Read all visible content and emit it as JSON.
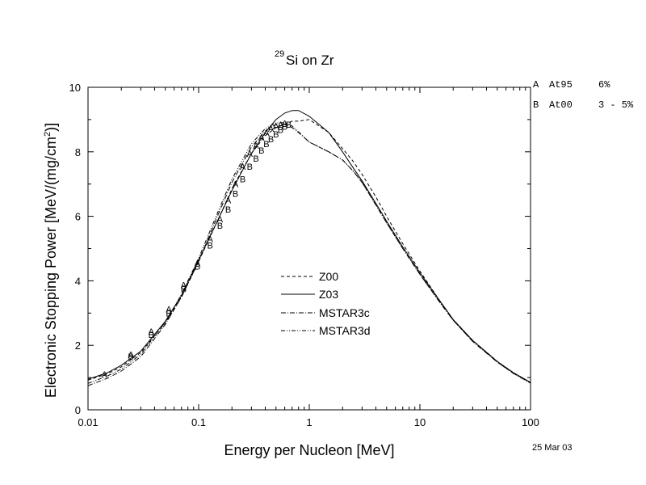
{
  "chart_data": {
    "type": "line",
    "title": "Si on Zr",
    "title_superscript": "29",
    "xlabel": "Energy per Nucleon [MeV]",
    "ylabel": "Electronic Stopping Power [MeV/(mg/cm",
    "ylabel_superscript": "2",
    "ylabel_suffix": ")]",
    "xscale": "log",
    "xlim": [
      0.01,
      100
    ],
    "ylim": [
      0,
      10
    ],
    "x_ticks": [
      0.01,
      0.1,
      1,
      10,
      100
    ],
    "x_tick_labels": [
      "0.01",
      "0.1",
      "1",
      "10",
      "100"
    ],
    "y_ticks": [
      0,
      2,
      4,
      6,
      8,
      10
    ],
    "y_tick_labels": [
      "0",
      "2",
      "4",
      "6",
      "8",
      "10"
    ],
    "legend_position": "center",
    "series": [
      {
        "name": "Z00",
        "style": "dashed",
        "x": [
          0.01,
          0.015,
          0.02,
          0.03,
          0.05,
          0.07,
          0.1,
          0.15,
          0.2,
          0.3,
          0.4,
          0.5,
          0.6,
          0.7,
          0.8,
          1.0,
          1.5,
          2.0,
          2.5,
          3,
          4,
          5,
          7,
          10,
          15,
          20,
          30,
          50,
          70,
          100
        ],
        "y": [
          0.92,
          1.12,
          1.33,
          1.78,
          2.7,
          3.5,
          4.6,
          5.9,
          6.85,
          7.95,
          8.5,
          8.75,
          8.85,
          8.95,
          8.95,
          9.0,
          8.6,
          8.1,
          7.7,
          7.3,
          6.6,
          6.0,
          5.15,
          4.3,
          3.4,
          2.8,
          2.15,
          1.5,
          1.15,
          0.85
        ]
      },
      {
        "name": "Z03",
        "style": "solid",
        "x": [
          0.01,
          0.015,
          0.02,
          0.03,
          0.05,
          0.07,
          0.1,
          0.15,
          0.2,
          0.3,
          0.4,
          0.5,
          0.6,
          0.7,
          0.8,
          1.0,
          1.5,
          2.0,
          2.5,
          3,
          4,
          5,
          7,
          10,
          15,
          20,
          30,
          50,
          70,
          100
        ],
        "y": [
          0.95,
          1.15,
          1.38,
          1.82,
          2.75,
          3.55,
          4.65,
          5.9,
          6.8,
          7.95,
          8.6,
          9.0,
          9.2,
          9.28,
          9.28,
          9.1,
          8.6,
          8.0,
          7.5,
          7.1,
          6.4,
          5.85,
          5.05,
          4.25,
          3.4,
          2.8,
          2.15,
          1.5,
          1.15,
          0.85
        ]
      },
      {
        "name": "MSTAR3c",
        "style": "dashdot",
        "x": [
          0.01,
          0.015,
          0.02,
          0.03,
          0.05,
          0.07,
          0.1,
          0.15,
          0.2,
          0.3,
          0.4,
          0.5,
          0.6,
          0.7,
          0.8,
          1.0,
          1.5,
          2.0,
          2.5,
          3,
          4,
          5,
          7,
          10,
          15,
          20,
          30,
          50,
          70,
          100
        ],
        "y": [
          0.75,
          0.98,
          1.2,
          1.65,
          2.65,
          3.5,
          4.6,
          6.05,
          7.05,
          8.15,
          8.65,
          8.85,
          8.85,
          8.75,
          8.6,
          8.3,
          8.0,
          7.75,
          7.4,
          7.05,
          6.35,
          5.8,
          5.0,
          4.2,
          3.35,
          2.78,
          2.12,
          1.48,
          1.13,
          0.83
        ]
      },
      {
        "name": "MSTAR3d",
        "style": "dashdotdot",
        "x": [
          0.01,
          0.015,
          0.02,
          0.03,
          0.05,
          0.07,
          0.1,
          0.15,
          0.2,
          0.3,
          0.4,
          0.5,
          0.6,
          0.7,
          0.8,
          1.0,
          1.5,
          2.0,
          2.5,
          3,
          4,
          5,
          7,
          10,
          15,
          20,
          30,
          50,
          70,
          100
        ],
        "y": [
          0.82,
          1.05,
          1.26,
          1.72,
          2.72,
          3.58,
          4.7,
          6.15,
          7.15,
          8.25,
          8.72,
          8.9,
          8.9,
          8.8,
          8.62,
          8.3,
          8.0,
          7.75,
          7.4,
          7.05,
          6.35,
          5.8,
          5.0,
          4.2,
          3.35,
          2.78,
          2.12,
          1.48,
          1.13,
          0.83
        ]
      }
    ],
    "markers": [
      {
        "label": "A",
        "x": 0.0141,
        "y": 1.1
      },
      {
        "label": "A",
        "x": 0.0244,
        "y": 1.72
      },
      {
        "label": "A",
        "x": 0.0373,
        "y": 2.43
      },
      {
        "label": "A",
        "x": 0.0537,
        "y": 3.12
      },
      {
        "label": "A",
        "x": 0.0732,
        "y": 3.87
      },
      {
        "label": "A",
        "x": 0.0976,
        "y": 4.55
      },
      {
        "label": "A",
        "x": 0.127,
        "y": 5.3
      },
      {
        "label": "A",
        "x": 0.156,
        "y": 5.92
      },
      {
        "label": "A",
        "x": 0.185,
        "y": 6.5
      },
      {
        "label": "A",
        "x": 0.215,
        "y": 7.0
      },
      {
        "label": "A",
        "x": 0.25,
        "y": 7.55
      },
      {
        "label": "A",
        "x": 0.29,
        "y": 7.95
      },
      {
        "label": "A",
        "x": 0.33,
        "y": 8.2
      },
      {
        "label": "A",
        "x": 0.37,
        "y": 8.45
      },
      {
        "label": "A",
        "x": 0.41,
        "y": 8.6
      },
      {
        "label": "A",
        "x": 0.45,
        "y": 8.72
      },
      {
        "label": "A",
        "x": 0.5,
        "y": 8.8
      },
      {
        "label": "A",
        "x": 0.55,
        "y": 8.85
      },
      {
        "label": "A",
        "x": 0.6,
        "y": 8.88
      },
      {
        "label": "B",
        "x": 0.0244,
        "y": 1.65
      },
      {
        "label": "B",
        "x": 0.0373,
        "y": 2.33
      },
      {
        "label": "B",
        "x": 0.0537,
        "y": 3.0
      },
      {
        "label": "B",
        "x": 0.0732,
        "y": 3.75
      },
      {
        "label": "B",
        "x": 0.0976,
        "y": 4.45
      },
      {
        "label": "B",
        "x": 0.127,
        "y": 5.1
      },
      {
        "label": "B",
        "x": 0.156,
        "y": 5.72
      },
      {
        "label": "B",
        "x": 0.185,
        "y": 6.22
      },
      {
        "label": "B",
        "x": 0.215,
        "y": 6.7
      },
      {
        "label": "B",
        "x": 0.25,
        "y": 7.15
      },
      {
        "label": "B",
        "x": 0.29,
        "y": 7.55
      },
      {
        "label": "B",
        "x": 0.33,
        "y": 7.8
      },
      {
        "label": "B",
        "x": 0.37,
        "y": 8.05
      },
      {
        "label": "B",
        "x": 0.41,
        "y": 8.25
      },
      {
        "label": "B",
        "x": 0.45,
        "y": 8.4
      },
      {
        "label": "B",
        "x": 0.5,
        "y": 8.55
      },
      {
        "label": "B",
        "x": 0.55,
        "y": 8.68
      },
      {
        "label": "B",
        "x": 0.6,
        "y": 8.78
      },
      {
        "label": "B",
        "x": 0.65,
        "y": 8.85
      }
    ],
    "annotations": {
      "ref_a_label": "A",
      "ref_a_code": "At95",
      "ref_a_err": "6%",
      "ref_b_label": "B",
      "ref_b_code": "At00",
      "ref_b_err": "3 - 5%",
      "date": "25 Mar 03"
    }
  }
}
